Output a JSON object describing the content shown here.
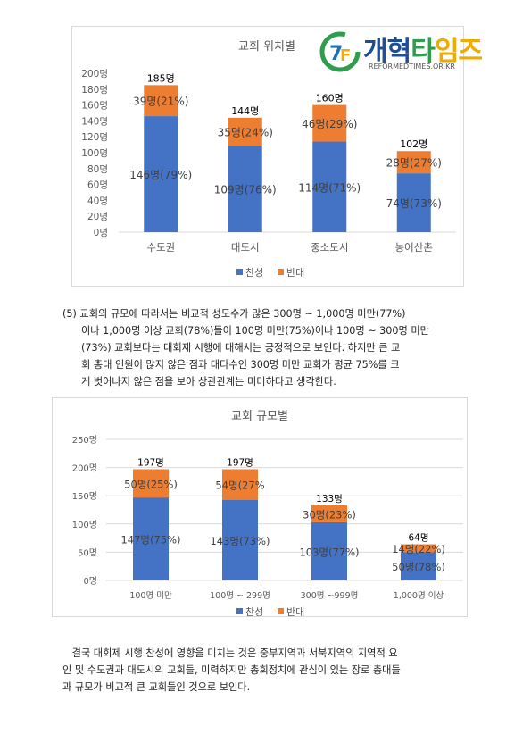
{
  "logo": {
    "text_a": "개혁",
    "text_b": "타",
    "text_c": "임즈",
    "sub": "REFORMEDTIMES.OR.KR"
  },
  "colors": {
    "agree": "#4472c4",
    "oppose": "#ed7d31",
    "grid": "#d9d9d9",
    "axis_text": "#595959"
  },
  "chart_data": [
    {
      "type": "bar",
      "title": "교회 위치별",
      "stacked": true,
      "categories": [
        "수도권",
        "대도시",
        "중소도시",
        "농어산촌"
      ],
      "series": [
        {
          "name": "찬성",
          "values": [
            146,
            109,
            114,
            74
          ],
          "labels": [
            "146명(79%)",
            "109명(76%)",
            "114명(71%)",
            "74명(73%)"
          ]
        },
        {
          "name": "반대",
          "values": [
            39,
            35,
            46,
            28
          ],
          "labels": [
            "39명(21%)",
            "35명(24%)",
            "46명(29%)",
            "28명(27%)"
          ]
        }
      ],
      "totals": [
        "185명",
        "144명",
        "160명",
        "102명"
      ],
      "ylim": [
        0,
        200
      ],
      "yticks": [
        "0명",
        "20명",
        "40명",
        "60명",
        "80명",
        "100명",
        "120명",
        "140명",
        "160명",
        "180명",
        "200명"
      ],
      "grid": false,
      "legend_position": "bottom"
    },
    {
      "type": "bar",
      "title": "교회 규모별",
      "stacked": true,
      "categories": [
        "100명 미만",
        "100명 ~ 299명",
        "300명 ~999명",
        "1,000명 이상"
      ],
      "series": [
        {
          "name": "찬성",
          "values": [
            147,
            143,
            103,
            50
          ],
          "labels": [
            "147명(75%)",
            "143명(73%)",
            "103명(77%)",
            "50명(78%)"
          ]
        },
        {
          "name": "반대",
          "values": [
            50,
            54,
            30,
            14
          ],
          "labels": [
            "50명(25%)",
            "54명(27%",
            "30명(23%)",
            "14명(22%)"
          ]
        }
      ],
      "totals": [
        "197명",
        "197명",
        "133명",
        "64명"
      ],
      "ylim": [
        0,
        250
      ],
      "yticks": [
        "0명",
        "50명",
        "100명",
        "150명",
        "200명",
        "250명"
      ],
      "grid": true,
      "legend_position": "bottom"
    }
  ],
  "para1": [
    "(5) 교회의 규모에 따라서는 비교적 성도수가 많은 300명 ~ 1,000명 미만(77%)",
    "이나 1,000명 이상 교회(78%)들이 100명 미만(75%)이나 100명 ~ 300명 미만",
    "(73%) 교회보다는 대회제 시행에 대해서는 긍정적으로 보인다. 하지만 큰 교",
    "회 총대 인원이 많지 않은 점과 대다수인 300명 미만 교회가 평균 75%를 크",
    "게 벗어나지 않은 점을 보아 상관관계는 미미하다고 생각한다."
  ],
  "para2": [
    "   결국 대회제 시행 찬성에 영향을 미치는 것은 중부지역과 서북지역의 지역적 요",
    "인 및 수도권과 대도시의 교회들, 미력하지만 총회정치에 관심이 있는 장로 총대들",
    "과 규모가 비교적 큰 교회들인 것으로 보인다."
  ]
}
